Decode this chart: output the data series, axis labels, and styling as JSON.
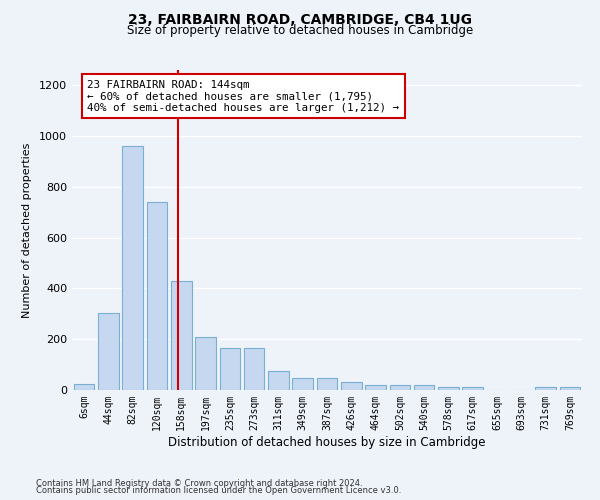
{
  "title1": "23, FAIRBAIRN ROAD, CAMBRIDGE, CB4 1UG",
  "title2": "Size of property relative to detached houses in Cambridge",
  "xlabel": "Distribution of detached houses by size in Cambridge",
  "ylabel": "Number of detached properties",
  "categories": [
    "6sqm",
    "44sqm",
    "82sqm",
    "120sqm",
    "158sqm",
    "197sqm",
    "235sqm",
    "273sqm",
    "311sqm",
    "349sqm",
    "387sqm",
    "426sqm",
    "464sqm",
    "502sqm",
    "540sqm",
    "578sqm",
    "617sqm",
    "655sqm",
    "693sqm",
    "731sqm",
    "769sqm"
  ],
  "bar_heights": [
    25,
    305,
    960,
    740,
    430,
    210,
    165,
    165,
    75,
    47,
    47,
    30,
    20,
    18,
    18,
    12,
    12,
    0,
    0,
    12,
    12
  ],
  "bar_color": "#c5d8f0",
  "bar_edge_color": "#7aafd4",
  "property_line_x": 3.87,
  "annotation_text": "23 FAIRBAIRN ROAD: 144sqm\n← 60% of detached houses are smaller (1,795)\n40% of semi-detached houses are larger (1,212) →",
  "annotation_box_color": "#ffffff",
  "annotation_box_edge": "#cc0000",
  "red_line_color": "#cc0000",
  "ylim": [
    0,
    1260
  ],
  "yticks": [
    0,
    200,
    400,
    600,
    800,
    1000,
    1200
  ],
  "footer1": "Contains HM Land Registry data © Crown copyright and database right 2024.",
  "footer2": "Contains public sector information licensed under the Open Government Licence v3.0.",
  "bg_color": "#eef2f9",
  "grid_color": "#ffffff"
}
